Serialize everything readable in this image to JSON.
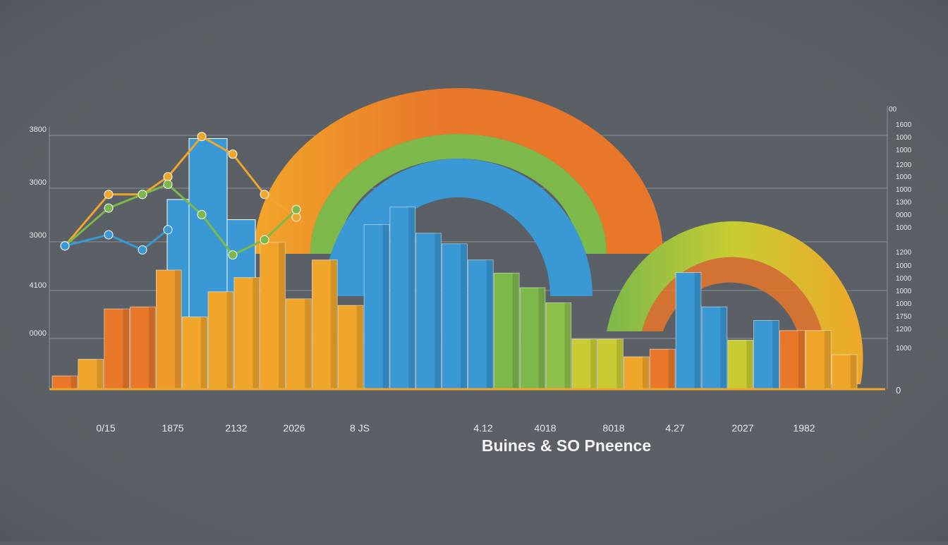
{
  "chart_data": {
    "type": "bar",
    "title": "Buines & SO Pneence",
    "y_labels_left": [
      "3800",
      "3000",
      "3000",
      "4100",
      "0000"
    ],
    "y_labels_right": [
      "00",
      "1600",
      "1000",
      "1000",
      "1200",
      "1000",
      "1000",
      "1300",
      "0000",
      "1000",
      "1200",
      "1000",
      "1000",
      "1000",
      "1000",
      "1750",
      "1200",
      "1000",
      "0"
    ],
    "x_labels": [
      "0/15",
      "1875",
      "2132",
      "2026",
      "8 JS",
      "4.12",
      "4018",
      "8018",
      "4.27",
      "2027",
      "1982"
    ],
    "ylim": [
      0,
      5400
    ],
    "grid": true,
    "legend": "none",
    "bars": [
      {
        "value": 250,
        "color": "#e8772a"
      },
      {
        "value": 580,
        "color": "#f0a62a"
      },
      {
        "value": 1580,
        "color": "#e8772a"
      },
      {
        "value": 1620,
        "color": "#e8772a"
      },
      {
        "value": 2350,
        "color": "#f09a2a"
      },
      {
        "value": 1420,
        "color": "#f0a62a"
      },
      {
        "value": 1920,
        "color": "#f0a62a"
      },
      {
        "value": 2200,
        "color": "#f0a62a"
      },
      {
        "value": 2900,
        "color": "#f2a52a"
      },
      {
        "value": 1780,
        "color": "#f0a62a"
      },
      {
        "value": 2550,
        "color": "#f0a62a"
      },
      {
        "value": 1650,
        "color": "#f0a62a"
      },
      {
        "value": 3250,
        "color": "#3a98d4"
      },
      {
        "value": 3600,
        "color": "#3a98d4"
      },
      {
        "value": 3080,
        "color": "#3a98d4"
      },
      {
        "value": 2870,
        "color": "#3a98d4"
      },
      {
        "value": 2550,
        "color": "#3a98d4"
      },
      {
        "value": 2290,
        "color": "#7cb84a"
      },
      {
        "value": 2000,
        "color": "#7cb84a"
      },
      {
        "value": 1700,
        "color": "#8dc04a"
      },
      {
        "value": 980,
        "color": "#c8cc32"
      },
      {
        "value": 980,
        "color": "#c8cc32"
      },
      {
        "value": 630,
        "color": "#f0a62a"
      },
      {
        "value": 780,
        "color": "#e8772a"
      },
      {
        "value": 2300,
        "color": "#3a98d4"
      },
      {
        "value": 1620,
        "color": "#3a98d4"
      },
      {
        "value": 960,
        "color": "#c8cc32"
      },
      {
        "value": 1350,
        "color": "#3a98d4"
      },
      {
        "value": 1150,
        "color": "#e8772a"
      },
      {
        "value": 1150,
        "color": "#f0a62a"
      },
      {
        "value": 670,
        "color": "#f0a62a"
      }
    ],
    "blue_back_bars": [
      {
        "value": 3750,
        "color": "#3a98d4"
      },
      {
        "value": 4960,
        "color": "#3a98d4"
      },
      {
        "value": 3350,
        "color": "#3a98d4"
      }
    ],
    "lines": [
      {
        "color": "#f0a62a",
        "points": [
          [
            0,
            2830
          ],
          [
            1,
            3850
          ],
          [
            2,
            3850
          ],
          [
            3,
            4200
          ],
          [
            4,
            5000
          ],
          [
            5,
            4650
          ],
          [
            6,
            3850
          ],
          [
            7,
            3400
          ]
        ]
      },
      {
        "color": "#7cb84a",
        "points": [
          [
            0,
            2830
          ],
          [
            1,
            3580
          ],
          [
            2,
            3850
          ],
          [
            3,
            4050
          ],
          [
            4,
            3450
          ],
          [
            5,
            2650
          ],
          [
            6,
            2950
          ],
          [
            7,
            3550
          ]
        ]
      },
      {
        "color": "#3a98d4",
        "points": [
          [
            0,
            2830
          ],
          [
            1,
            3050
          ],
          [
            2,
            2750
          ],
          [
            3,
            3150
          ]
        ]
      }
    ],
    "arcs": [
      {
        "name": "",
        "color": "#e8772a"
      },
      {
        "name": "",
        "color": "#7cb84a"
      },
      {
        "name": "",
        "color": "#3a98d4"
      }
    ]
  }
}
